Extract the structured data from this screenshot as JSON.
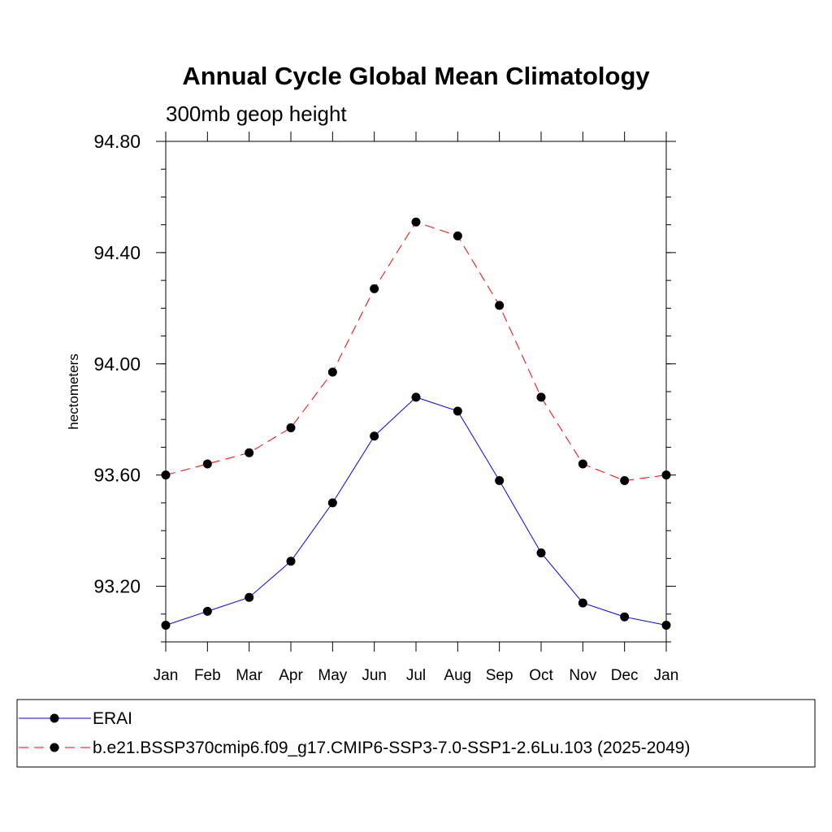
{
  "chart_data": {
    "type": "line",
    "title": "Annual Cycle Global Mean Climatology",
    "subtitle": "300mb geop height",
    "ylabel": "hectometers",
    "categories": [
      "Jan",
      "Feb",
      "Mar",
      "Apr",
      "May",
      "Jun",
      "Jul",
      "Aug",
      "Sep",
      "Oct",
      "Nov",
      "Dec",
      "Jan"
    ],
    "ylim": [
      93.0,
      94.8
    ],
    "yticks": [
      93.2,
      93.6,
      94.0,
      94.4,
      94.8
    ],
    "ytick_labels": [
      "93.20",
      "93.60",
      "94.00",
      "94.40",
      "94.80"
    ],
    "series": [
      {
        "name": "ERAI",
        "color": "#0000ff",
        "dash": "solid",
        "marker": "filled-circle",
        "values": [
          93.06,
          93.11,
          93.16,
          93.29,
          93.5,
          93.74,
          93.88,
          93.83,
          93.58,
          93.32,
          93.14,
          93.09,
          93.06
        ]
      },
      {
        "name": "b.e21.BSSP370cmip6.f09_g17.CMIP6-SSP3-7.0-SSP1-2.6Lu.103 (2025-2049)",
        "color": "#ff0000",
        "dash": "dashed",
        "marker": "filled-circle",
        "values": [
          93.6,
          93.64,
          93.68,
          93.77,
          93.97,
          94.27,
          94.51,
          94.46,
          94.21,
          93.88,
          93.64,
          93.58,
          93.6
        ]
      }
    ],
    "grid": false,
    "legend_placement": "bottom"
  }
}
